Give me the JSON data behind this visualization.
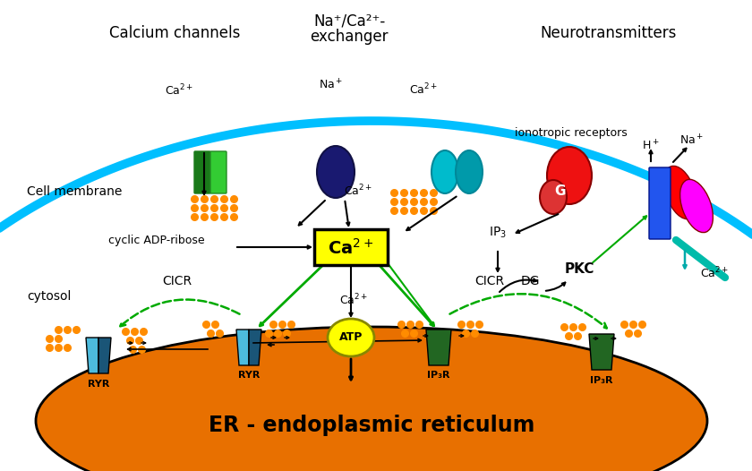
{
  "bg_color": "#ffffff",
  "er_color": "#E87000",
  "er_outline": "#000000",
  "membrane_color": "#00BFFF",
  "dot_color": "#FF8C00",
  "labels": {
    "calcium_channels": "Calcium channels",
    "exchanger_line1": "Na⁺/Ca²⁺-",
    "exchanger_line2": "exchanger",
    "neurotransmitters": "Neurotransmitters",
    "cell_membrane": "Cell membrane",
    "cyclic_adp": "cyclic ADP-ribose",
    "cicr_left": "CICR",
    "cicr_right": "CICR",
    "cytosol": "cytosol",
    "er_label": "ER - endoplasmic reticulum",
    "ionotropic": "ionotropic receptors",
    "ip3": "IP₃",
    "dg": "DG",
    "pkc": "PKC",
    "ryr_left": "RYR",
    "ryr_right": "RYR",
    "ip3r_left": "IP₃R",
    "ip3r_right": "IP₃R",
    "atp_label": "ATP"
  }
}
